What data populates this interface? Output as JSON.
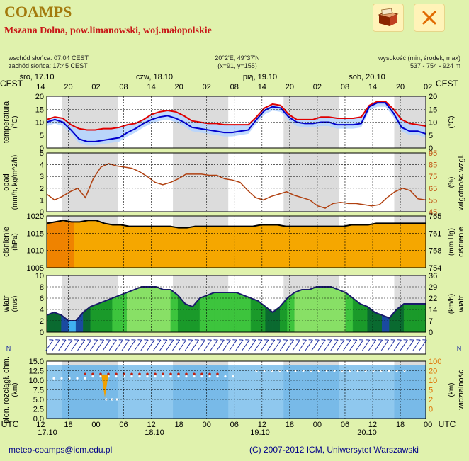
{
  "app_title": "COAMPS",
  "location": "Mszana Dolna, pow.limanowski, woj.małopolskie",
  "icons": {
    "map_button": "map-icon",
    "close_button": "close-icon"
  },
  "info": {
    "sunrise": "wschód słońca: 07:04 CEST",
    "sunset": "zachód słońca: 17:45 CEST",
    "coords": "20°2'E, 49°37'N",
    "grid": "(x=91,  y=155)",
    "elev_label": "wysokość (min, środek, max)",
    "elev_values": "537 - 754 - 924 m"
  },
  "footer": {
    "email": "meteo-coamps@icm.edu.pl",
    "copyright": "(C) 2007-2012 ICM, Uniwersytet Warszawski"
  },
  "chart_data": {
    "type": "line",
    "time_axis": {
      "top_zone": "CEST",
      "bottom_zone": "UTC",
      "day_labels": [
        "śro, 17.10",
        "czw, 18.10",
        "pią, 19.10",
        "sob, 20.10"
      ],
      "top_hours": [
        "14",
        "20",
        "02",
        "08",
        "14",
        "20",
        "02",
        "08",
        "14",
        "20",
        "02",
        "08",
        "14",
        "20",
        "02"
      ],
      "bottom_hours": [
        "12",
        "18",
        "00",
        "06",
        "12",
        "18",
        "00",
        "06",
        "12",
        "18",
        "00",
        "06",
        "12",
        "18",
        "00"
      ],
      "bottom_dates": [
        "17.10",
        "18.10",
        "19.10",
        "20.10"
      ]
    },
    "panels": [
      {
        "name": "temperatura",
        "left_label": "temperatura",
        "left_unit": "(°C)",
        "right_unit": "(°C)",
        "ylim": [
          0,
          20
        ],
        "left_ticks": [
          "20",
          "15",
          "10",
          "5",
          "0"
        ],
        "right_ticks": [
          "20",
          "15",
          "10",
          "5",
          "0"
        ],
        "series": [
          {
            "name": "",
            "color": "#e00000",
            "values": [
              11,
              12,
              11.5,
              9,
              7.5,
              7,
              7,
              7.5,
              7.5,
              8,
              9,
              9.5,
              11,
              13,
              14,
              14.5,
              14,
              12.5,
              10.5,
              10,
              9.5,
              9.5,
              9,
              9,
              9,
              9,
              12,
              15.5,
              17,
              16.5,
              13,
              11,
              11,
              11,
              12,
              12,
              11.5,
              11.5,
              11.5,
              12,
              16.5,
              18,
              18,
              15,
              11,
              9.5,
              9,
              8.5
            ]
          },
          {
            "name": "",
            "color": "#0000cc",
            "values": [
              10,
              11,
              10,
              7,
              3.5,
              2.5,
              2.5,
              3,
              3.5,
              4,
              6,
              7.5,
              9.5,
              11,
              12,
              12.5,
              11.5,
              10,
              8,
              7.5,
              7,
              6.5,
              6,
              6,
              6.5,
              7,
              11,
              14.5,
              16,
              15.5,
              12,
              10,
              9.5,
              9.5,
              10,
              10,
              9,
              9,
              9,
              9.5,
              16,
              17.5,
              17.5,
              13.5,
              8,
              6.5,
              6.5,
              5.5
            ]
          }
        ]
      },
      {
        "name": "opad",
        "left_label": "opad",
        "left_unit": "(mm/h, kg/m^2/h)",
        "right_label": "wilgotność wzgl.",
        "right_unit": "(%)",
        "ylim": [
          0,
          5
        ],
        "right_ylim": [
          45,
          95
        ],
        "left_ticks": [
          "5",
          "4",
          "3",
          "2",
          "1",
          "0"
        ],
        "right_ticks": [
          "95",
          "85",
          "75",
          "65",
          "55",
          "45"
        ],
        "series": [
          {
            "name": "",
            "color": "#b04010",
            "values": [
              60,
              55,
              58,
              62,
              65,
              57,
              73,
              83,
              86,
              84,
              83,
              82,
              79,
              75,
              70,
              68,
              70,
              73,
              77,
              77,
              77,
              76,
              76,
              73,
              72,
              70,
              63,
              57,
              55,
              58,
              60,
              62,
              59,
              57,
              55,
              50,
              48,
              52,
              53,
              52,
              52,
              51,
              50,
              51,
              57,
              62,
              65,
              63,
              56,
              55
            ]
          }
        ]
      },
      {
        "name": "ciśnienie",
        "left_label": "ciśnienie",
        "left_unit": "(hPa)",
        "right_label": "ciśnienie",
        "right_unit": "(mm Hg)",
        "ylim": [
          1005,
          1022.5
        ],
        "left_ticks": [
          "1020",
          "1015",
          "1010",
          "1005"
        ],
        "right_ticks": [
          "765",
          "761",
          "758",
          "754"
        ],
        "series": [
          {
            "name": "",
            "color": "#000000",
            "values": [
              1020,
              1020.5,
              1021,
              1020.5,
              1020.5,
              1021,
              1021,
              1020,
              1019.5,
              1019.5,
              1019,
              1019,
              1019,
              1019,
              1019,
              1019,
              1018.5,
              1018.5,
              1019,
              1019,
              1019,
              1019,
              1019,
              1019,
              1019,
              1019,
              1019.5,
              1019.5,
              1019.5,
              1019,
              1019,
              1019,
              1019,
              1019,
              1019,
              1019,
              1019,
              1019.5,
              1019.5,
              1019.5,
              1020,
              1020,
              1020,
              1020,
              1020,
              1020,
              1020
            ]
          }
        ]
      },
      {
        "name": "wiatr",
        "left_label": "wiatr",
        "left_unit": "(m/s)",
        "right_label": "wiatr",
        "right_unit": "(km/h)",
        "ylim": [
          0,
          10
        ],
        "left_ticks": [
          "10",
          "8",
          "6",
          "4",
          "2",
          "0"
        ],
        "right_ticks": [
          "36",
          "29",
          "22",
          "14",
          "7",
          "0"
        ],
        "series": [
          {
            "name": "",
            "color": "#1a1a6a",
            "values": [
              3,
              3.5,
              3,
              2,
              2,
              3.5,
              4.5,
              5,
              5.5,
              6,
              6.5,
              7,
              7.5,
              8,
              8,
              8,
              7.5,
              7.5,
              6.5,
              5,
              4.5,
              6,
              6.5,
              7,
              7,
              7,
              7,
              6.5,
              6,
              5.5,
              4.5,
              3.5,
              4.5,
              6,
              7,
              7.5,
              7.5,
              8,
              8,
              8,
              7.5,
              7,
              6,
              5,
              4.5,
              3.5,
              3,
              2.5,
              4,
              5,
              5,
              5,
              5
            ]
          }
        ]
      },
      {
        "name": "wind-direction",
        "left_label": "",
        "right_label": ""
      },
      {
        "name": "chmury",
        "left_label": "pion. rozciągł. chm.",
        "left_unit": "(km)",
        "right_label": "widzialność",
        "right_unit": "(km)",
        "ylim": [
          0,
          15
        ],
        "left_ticks": [
          "15.0",
          "12.5",
          "10.0",
          "7.5",
          "5.0",
          "2.5",
          "0.0"
        ],
        "right_ticks": [
          "100",
          "20",
          "10",
          "5",
          "2",
          "0"
        ]
      }
    ]
  }
}
